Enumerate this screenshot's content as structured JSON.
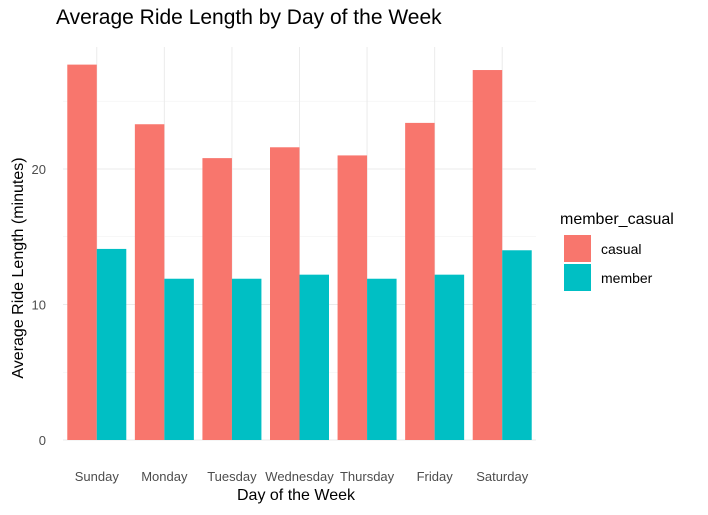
{
  "chart_data": {
    "type": "bar",
    "title": "Average Ride Length by Day of the Week",
    "xlabel": "Day of the Week",
    "ylabel": "Average Ride Length (minutes)",
    "categories": [
      "Sunday",
      "Monday",
      "Tuesday",
      "Wednesday",
      "Thursday",
      "Friday",
      "Saturday"
    ],
    "series": [
      {
        "name": "casual",
        "color": "#F8766D",
        "values": [
          27.7,
          23.3,
          20.8,
          21.6,
          21.0,
          23.4,
          27.3
        ]
      },
      {
        "name": "member",
        "color": "#00BFC4",
        "values": [
          14.1,
          11.9,
          11.9,
          12.2,
          11.9,
          12.2,
          14.0
        ]
      }
    ],
    "ylim": [
      0,
      29
    ],
    "yticks": [
      0,
      10,
      20
    ],
    "legend": {
      "title": "member_casual",
      "position": "right"
    },
    "grid": true
  }
}
